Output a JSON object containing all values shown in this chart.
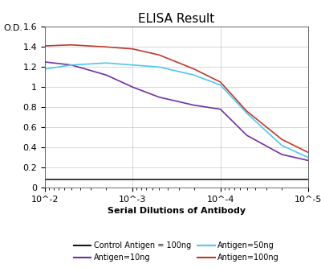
{
  "title": "ELISA Result",
  "ylabel": "O.D.",
  "xlabel": "Serial Dilutions of Antibody",
  "ylim": [
    0,
    1.6
  ],
  "yticks": [
    0,
    0.2,
    0.4,
    0.6,
    0.8,
    1.0,
    1.2,
    1.4,
    1.6
  ],
  "ytick_labels": [
    "0",
    "0.2",
    "0.4",
    "0.6",
    "0.8",
    "1",
    "1.2",
    "1.4",
    "1.6"
  ],
  "xticks": [
    0.01,
    0.001,
    0.0001,
    1e-05
  ],
  "xtick_labels": [
    "10^-2",
    "10^-3",
    "10^-4",
    "10^-5"
  ],
  "bg_color": "#ffffff",
  "lines": {
    "control": {
      "color": "#1a1a1a",
      "label": "Control Antigen = 100ng",
      "x": [
        0.01,
        0.005,
        0.002,
        0.001,
        0.0005,
        0.0002,
        0.0001,
        5e-05,
        2e-05,
        1e-05
      ],
      "y": [
        0.08,
        0.08,
        0.08,
        0.08,
        0.08,
        0.08,
        0.08,
        0.08,
        0.08,
        0.08
      ]
    },
    "antigen_10ng": {
      "color": "#7030a0",
      "label": "Antigen=10ng",
      "x": [
        0.01,
        0.005,
        0.002,
        0.001,
        0.0005,
        0.0002,
        0.0001,
        5e-05,
        2e-05,
        1e-05
      ],
      "y": [
        1.25,
        1.22,
        1.12,
        1.0,
        0.9,
        0.82,
        0.78,
        0.52,
        0.33,
        0.27
      ]
    },
    "antigen_50ng": {
      "color": "#4dc8f0",
      "label": "Antigen=50ng",
      "x": [
        0.01,
        0.005,
        0.002,
        0.001,
        0.0005,
        0.0002,
        0.0001,
        5e-05,
        2e-05,
        1e-05
      ],
      "y": [
        1.18,
        1.22,
        1.24,
        1.22,
        1.2,
        1.12,
        1.02,
        0.74,
        0.42,
        0.3
      ]
    },
    "antigen_100ng": {
      "color": "#c0392b",
      "label": "Antigen=100ng",
      "x": [
        0.01,
        0.005,
        0.002,
        0.001,
        0.0005,
        0.0002,
        0.0001,
        5e-05,
        2e-05,
        1e-05
      ],
      "y": [
        1.41,
        1.42,
        1.4,
        1.38,
        1.32,
        1.18,
        1.05,
        0.76,
        0.48,
        0.35
      ]
    }
  },
  "legend_labels": [
    "Control Antigen = 100ng",
    "Antigen=10ng",
    "Antigen=50ng",
    "Antigen=100ng"
  ],
  "legend_colors": [
    "#1a1a1a",
    "#7030a0",
    "#4dc8f0",
    "#c0392b"
  ],
  "legend_fontsize": 7.0,
  "title_fontsize": 11,
  "axis_label_fontsize": 8,
  "tick_fontsize": 8
}
